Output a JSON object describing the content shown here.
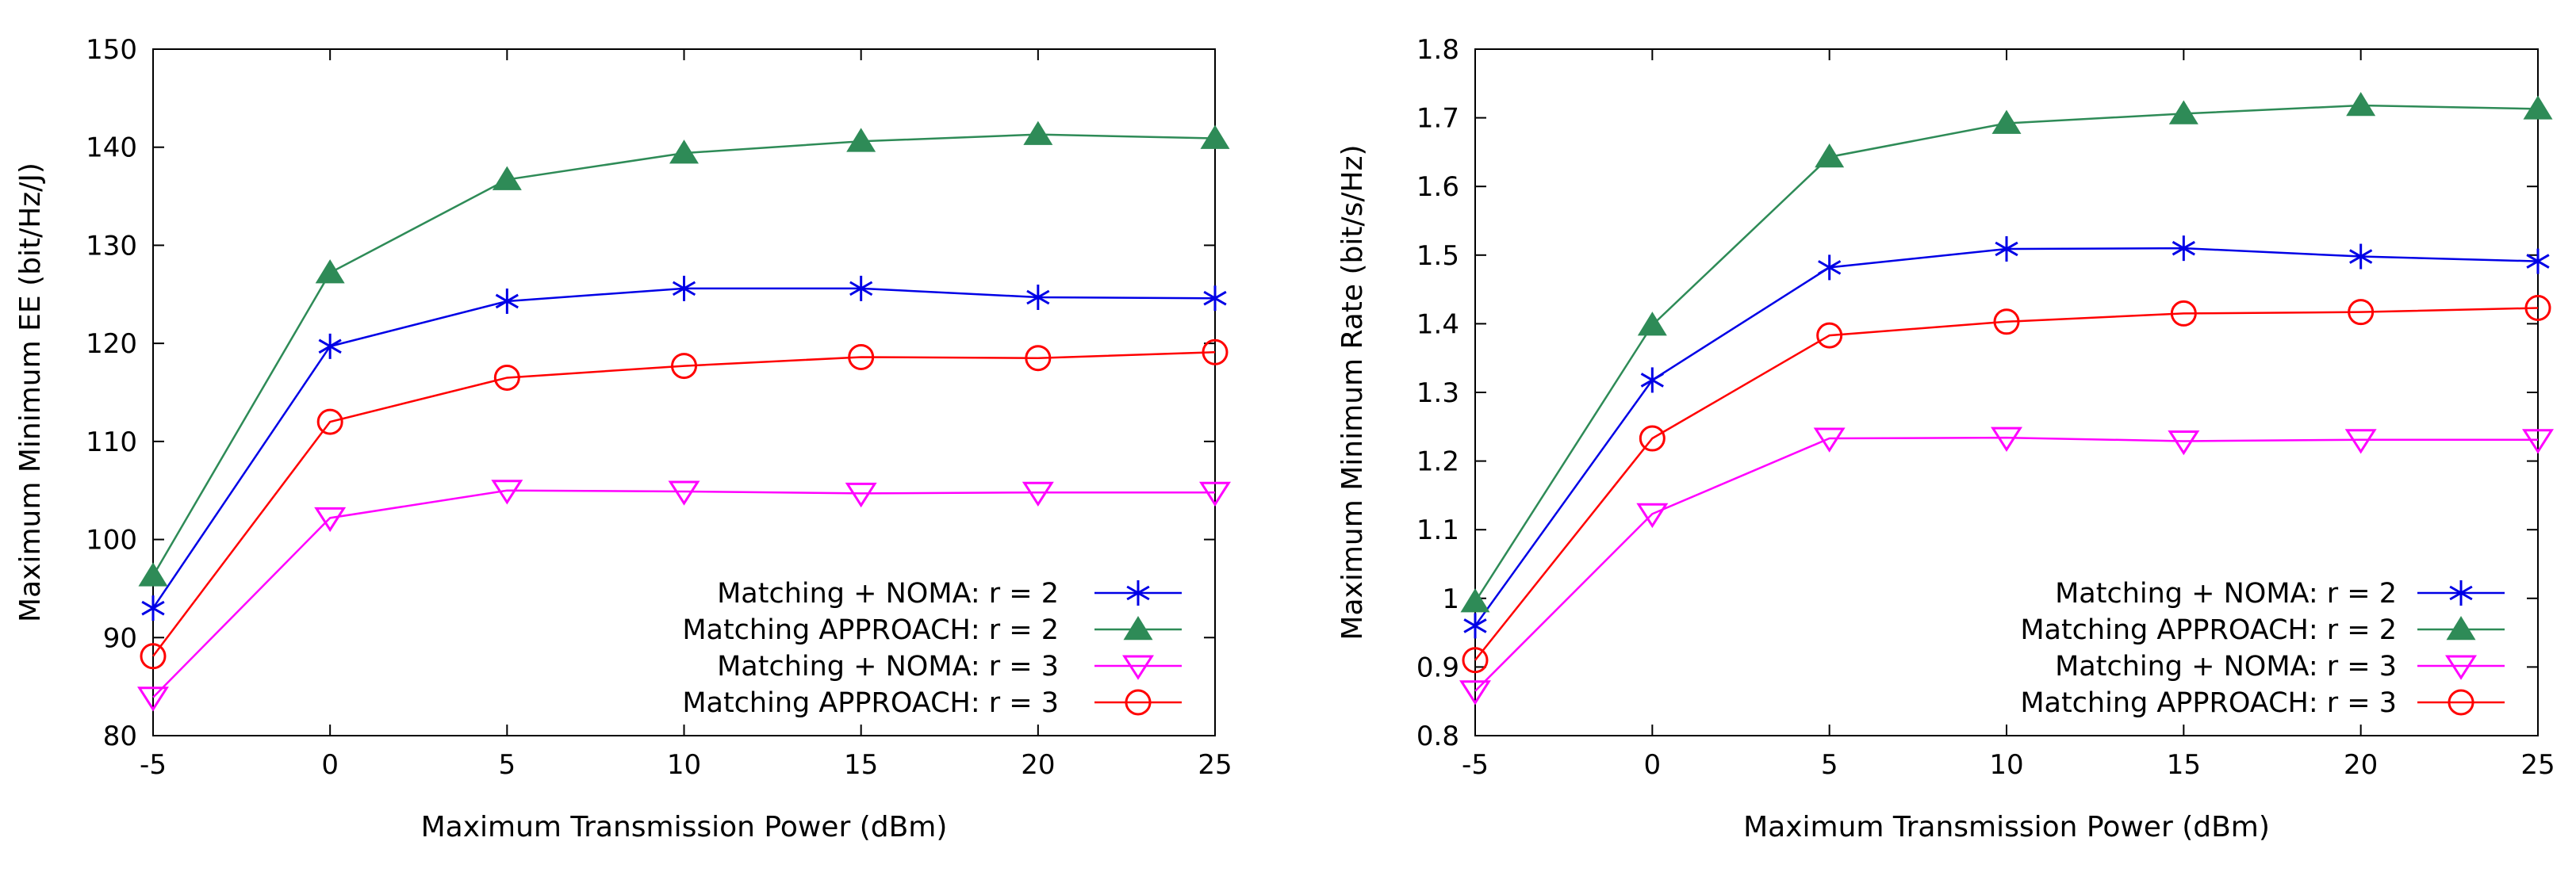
{
  "colors": {
    "noma_r2": "#0000e6",
    "approach_r2": "#2e8b57",
    "noma_r3": "#ff00ff",
    "approach_r3": "#ff0000",
    "axis": "#000000"
  },
  "chart_data": [
    {
      "type": "line",
      "title": "",
      "xlabel": "Maximum Transmission Power (dBm)",
      "ylabel": "Maximum Minimum EE (bit/Hz/J)",
      "x": [
        -5,
        0,
        5,
        10,
        15,
        20,
        25
      ],
      "xlim": [
        -5,
        25
      ],
      "ylim": [
        80,
        150
      ],
      "xticks": [
        "-5",
        "0",
        "5",
        "10",
        "15",
        "20",
        "25"
      ],
      "yticks": [
        "80",
        "90",
        "100",
        "110",
        "120",
        "130",
        "140",
        "150"
      ],
      "legend_position": "bottom-right",
      "grid": false,
      "series": [
        {
          "name": "Matching + NOMA: r = 2",
          "color_key": "noma_r2",
          "marker": "asterisk",
          "values": [
            93,
            119.7,
            124.3,
            125.6,
            125.6,
            124.7,
            124.6
          ]
        },
        {
          "name": "Matching APPROACH: r = 2",
          "color_key": "approach_r2",
          "marker": "triangle",
          "values": [
            96.3,
            127.2,
            136.7,
            139.4,
            140.6,
            141.3,
            140.9
          ]
        },
        {
          "name": "Matching + NOMA: r = 3",
          "color_key": "noma_r3",
          "marker": "triangle-down",
          "values": [
            83.9,
            102.2,
            105.0,
            104.9,
            104.7,
            104.8,
            104.8
          ]
        },
        {
          "name": "Matching APPROACH: r = 3",
          "color_key": "approach_r3",
          "marker": "circle",
          "values": [
            88.1,
            112.0,
            116.5,
            117.7,
            118.6,
            118.5,
            119.1
          ]
        }
      ]
    },
    {
      "type": "line",
      "title": "",
      "xlabel": "Maximum Transmission Power (dBm)",
      "ylabel": "Maximum Minimum Rate (bit/s/Hz)",
      "x": [
        -5,
        0,
        5,
        10,
        15,
        20,
        25
      ],
      "xlim": [
        -5,
        25
      ],
      "ylim": [
        0.8,
        1.8
      ],
      "xticks": [
        "-5",
        "0",
        "5",
        "10",
        "15",
        "20",
        "25"
      ],
      "yticks": [
        "0.8",
        "0.9",
        "1",
        "1.1",
        "1.2",
        "1.3",
        "1.4",
        "1.5",
        "1.6",
        "1.7",
        "1.8"
      ],
      "legend_position": "bottom-right",
      "grid": false,
      "series": [
        {
          "name": "Matching + NOMA: r = 2",
          "color_key": "noma_r2",
          "marker": "asterisk",
          "values": [
            0.96,
            1.318,
            1.482,
            1.509,
            1.51,
            1.498,
            1.491
          ]
        },
        {
          "name": "Matching APPROACH: r = 2",
          "color_key": "approach_r2",
          "marker": "triangle",
          "values": [
            0.995,
            1.398,
            1.643,
            1.692,
            1.706,
            1.718,
            1.713
          ]
        },
        {
          "name": "Matching + NOMA: r = 3",
          "color_key": "noma_r3",
          "marker": "triangle-down",
          "values": [
            0.865,
            1.123,
            1.233,
            1.234,
            1.229,
            1.231,
            1.231
          ]
        },
        {
          "name": "Matching APPROACH: r = 3",
          "color_key": "approach_r3",
          "marker": "circle",
          "values": [
            0.91,
            1.233,
            1.383,
            1.403,
            1.415,
            1.417,
            1.423
          ]
        }
      ]
    }
  ]
}
